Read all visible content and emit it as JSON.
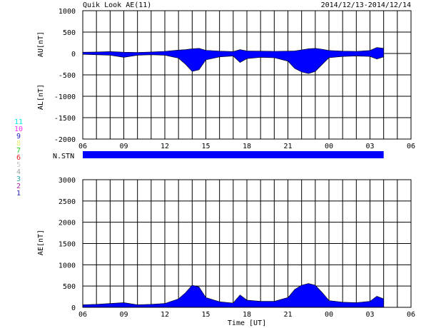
{
  "header": {
    "title": "Quik Look AE(11)",
    "date_range": "2014/12/13-2014/12/14"
  },
  "stations": {
    "label": "N.STN",
    "numbers": [
      {
        "n": "11",
        "color": "#00e5e5"
      },
      {
        "n": "10",
        "color": "#ff33ff"
      },
      {
        "n": "9",
        "color": "#2222cc"
      },
      {
        "n": "8",
        "color": "#e8e870"
      },
      {
        "n": "7",
        "color": "#22cc22"
      },
      {
        "n": "6",
        "color": "#ee2222"
      },
      {
        "n": "5",
        "color": "#c8c8c8"
      },
      {
        "n": "4",
        "color": "#a0a0a0"
      },
      {
        "n": "3",
        "color": "#33aaaa"
      },
      {
        "n": "2",
        "color": "#aa22aa"
      },
      {
        "n": "1",
        "color": "#2222aa"
      }
    ],
    "bar_color": "#0000ff",
    "coverage_hours": [
      6,
      28
    ]
  },
  "chart_data": [
    {
      "type": "area",
      "panel": "AU/AL",
      "ylabel_upper": "AU[nT]",
      "ylabel_lower": "AL[nT]",
      "ylim": [
        -2000,
        1000
      ],
      "yticks": [
        1000,
        500,
        0,
        -500,
        -1000,
        -1500,
        -2000
      ],
      "xlim_hours": [
        6,
        30
      ],
      "xtick_labels": [
        "06",
        "09",
        "12",
        "15",
        "18",
        "21",
        "00",
        "03",
        "06"
      ],
      "grid": true,
      "fill_color": "#0000ff",
      "data_end_hour": 28.0,
      "series": [
        {
          "name": "AU",
          "x": [
            6,
            7,
            8,
            9,
            10,
            11,
            12,
            13,
            13.5,
            14,
            14.5,
            15,
            16,
            17,
            17.5,
            18,
            19,
            20,
            21,
            21.5,
            22,
            22.5,
            23,
            23.5,
            24,
            25,
            26,
            27,
            27.5,
            28
          ],
          "values": [
            30,
            35,
            45,
            30,
            25,
            35,
            50,
            80,
            90,
            110,
            120,
            75,
            55,
            45,
            90,
            60,
            55,
            50,
            55,
            60,
            85,
            110,
            120,
            100,
            70,
            55,
            50,
            70,
            140,
            120
          ]
        },
        {
          "name": "AL",
          "x": [
            6,
            7,
            8,
            9,
            10,
            11,
            12,
            13,
            13.5,
            14,
            14.5,
            15,
            16,
            17,
            17.5,
            18,
            19,
            20,
            21,
            21.5,
            22,
            22.5,
            23,
            23.5,
            24,
            25,
            26,
            27,
            27.5,
            28
          ],
          "values": [
            -20,
            -30,
            -40,
            -90,
            -40,
            -30,
            -40,
            -110,
            -250,
            -420,
            -380,
            -150,
            -80,
            -60,
            -210,
            -120,
            -90,
            -100,
            -180,
            -350,
            -430,
            -470,
            -420,
            -260,
            -100,
            -70,
            -60,
            -70,
            -130,
            -80
          ]
        }
      ]
    },
    {
      "type": "area",
      "panel": "AE",
      "ylabel": "AE[nT]",
      "ylim": [
        0,
        3000
      ],
      "yticks": [
        3000,
        2500,
        2000,
        1500,
        1000,
        500,
        0
      ],
      "xlim_hours": [
        6,
        30
      ],
      "xtick_labels": [
        "06",
        "09",
        "12",
        "15",
        "18",
        "21",
        "00",
        "03",
        "06"
      ],
      "xlabel": "Time [UT]",
      "grid": true,
      "fill_color": "#0000ff",
      "data_end_hour": 28.0,
      "series": [
        {
          "name": "AE",
          "x": [
            6,
            7,
            8,
            9,
            10,
            11,
            12,
            13,
            13.5,
            14,
            14.5,
            15,
            16,
            17,
            17.5,
            18,
            19,
            20,
            21,
            21.5,
            22,
            22.5,
            23,
            23.5,
            24,
            25,
            26,
            27,
            27.5,
            28
          ],
          "values": [
            60,
            70,
            90,
            110,
            60,
            70,
            90,
            200,
            340,
            520,
            480,
            230,
            130,
            100,
            290,
            170,
            140,
            140,
            230,
            420,
            520,
            560,
            520,
            350,
            160,
            120,
            110,
            140,
            260,
            200
          ]
        }
      ]
    }
  ]
}
